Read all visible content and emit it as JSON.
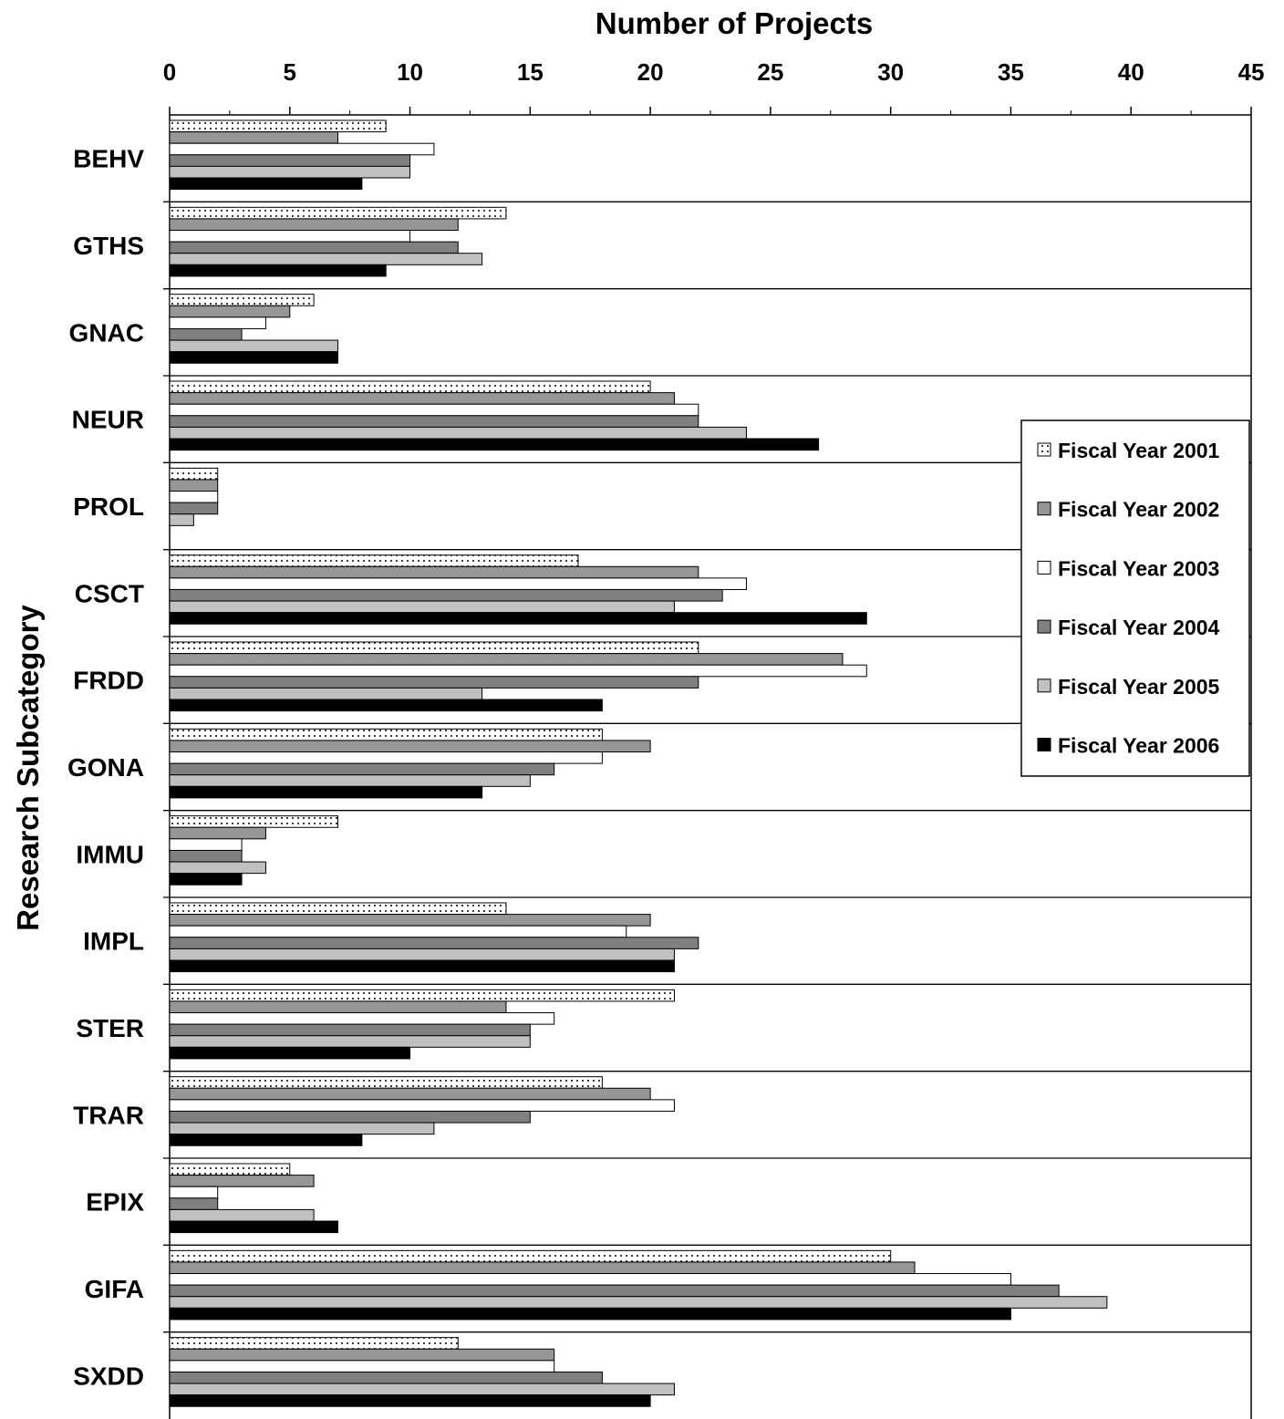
{
  "chart_data": {
    "type": "bar",
    "orientation": "horizontal",
    "xlabel": "Number of Projects",
    "ylabel": "Research Subcategory",
    "xlim": [
      0,
      45
    ],
    "x_ticks": [
      0,
      5,
      10,
      15,
      20,
      25,
      30,
      35,
      40,
      45
    ],
    "x_tick_labels": [
      "0",
      "5",
      "10",
      "15",
      "20",
      "25",
      "30",
      "35",
      "40",
      "45"
    ],
    "x_axis_position": "top",
    "grid": false,
    "legend_position": "right",
    "categories": [
      "BEHV",
      "GTHS",
      "GNAC",
      "NEUR",
      "PROL",
      "CSCT",
      "FRDD",
      "GONA",
      "IMMU",
      "IMPL",
      "STER",
      "TRAR",
      "EPIX",
      "GIFA",
      "SXDD"
    ],
    "series": [
      {
        "name": "Fiscal Year 2001",
        "color": "#ffffff",
        "pattern": "dotted",
        "values": [
          9,
          14,
          6,
          20,
          2,
          17,
          22,
          18,
          7,
          14,
          21,
          18,
          5,
          30,
          12
        ]
      },
      {
        "name": "Fiscal Year 2002",
        "color": "#969696",
        "values": [
          7,
          12,
          5,
          21,
          2,
          22,
          28,
          20,
          4,
          20,
          14,
          20,
          6,
          31,
          16
        ]
      },
      {
        "name": "Fiscal Year 2003",
        "color": "#ffffff",
        "values": [
          11,
          10,
          4,
          22,
          2,
          24,
          29,
          18,
          3,
          19,
          16,
          21,
          2,
          35,
          16
        ]
      },
      {
        "name": "Fiscal Year 2004",
        "color": "#808080",
        "values": [
          10,
          12,
          3,
          22,
          2,
          23,
          22,
          16,
          3,
          22,
          15,
          15,
          2,
          37,
          18
        ]
      },
      {
        "name": "Fiscal Year 2005",
        "color": "#c0c0c0",
        "values": [
          10,
          13,
          7,
          24,
          1,
          21,
          13,
          15,
          4,
          21,
          15,
          11,
          6,
          39,
          21
        ]
      },
      {
        "name": "Fiscal Year 2006",
        "color": "#000000",
        "values": [
          8,
          9,
          7,
          27,
          0,
          29,
          18,
          13,
          3,
          21,
          10,
          8,
          7,
          35,
          20
        ]
      }
    ]
  }
}
